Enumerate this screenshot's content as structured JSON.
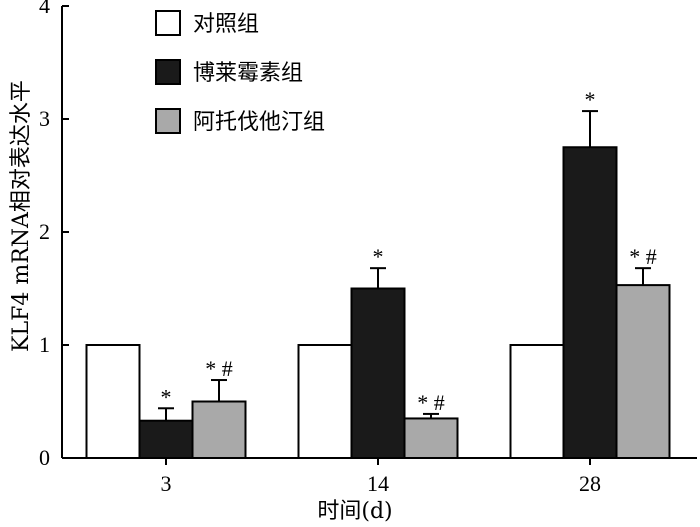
{
  "chart_data": {
    "type": "bar",
    "xlabel": "时间(d)",
    "ylabel": "KLF4 mRNA相对表达水平",
    "categories": [
      "3",
      "14",
      "28"
    ],
    "ylim": [
      0,
      4
    ],
    "yticks": [
      "0",
      "1",
      "2",
      "3",
      "4"
    ],
    "grid": false,
    "legend_position": "top-left",
    "series": [
      {
        "name": "对照组",
        "color": "#ffffff",
        "values": [
          1.0,
          1.0,
          1.0
        ],
        "errors": [
          0,
          0,
          0
        ],
        "annotations": [
          "",
          "",
          ""
        ]
      },
      {
        "name": "博莱霉素组",
        "color": "#1a1a1a",
        "values": [
          0.33,
          1.5,
          2.75
        ],
        "errors": [
          0.11,
          0.18,
          0.32
        ],
        "annotations": [
          "*",
          "*",
          "*"
        ]
      },
      {
        "name": "阿托伐他汀组",
        "color": "#a9a9a9",
        "values": [
          0.5,
          0.35,
          1.53
        ],
        "errors": [
          0.19,
          0.04,
          0.15
        ],
        "annotations": [
          "*#",
          "*#",
          "*#"
        ]
      }
    ]
  }
}
